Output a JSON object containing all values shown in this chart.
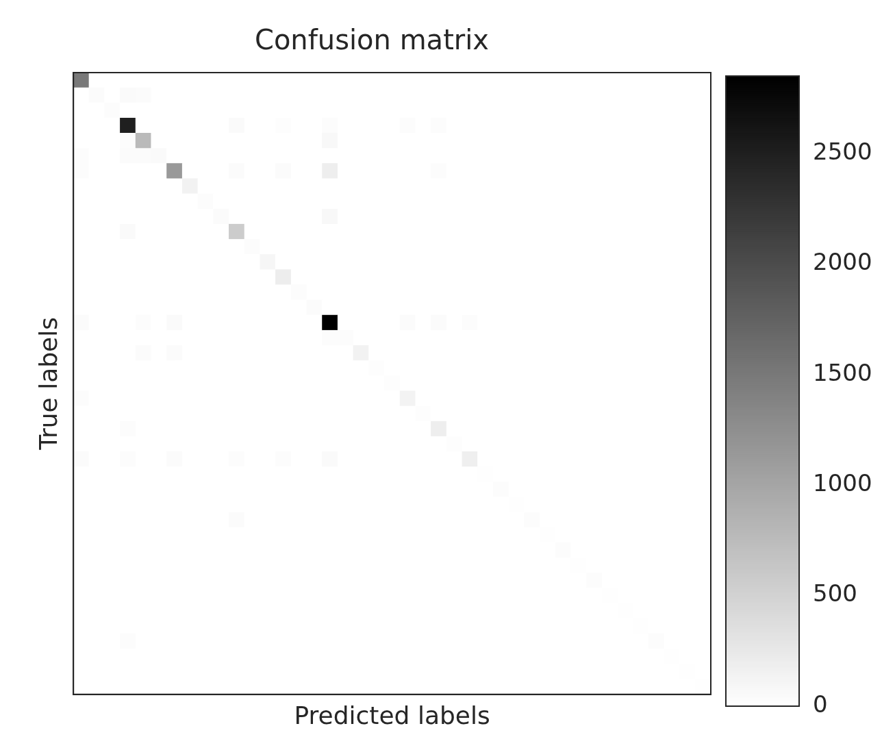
{
  "chart_data": {
    "type": "heatmap",
    "title": "Confusion matrix",
    "xlabel": "Predicted labels",
    "ylabel": "True labels",
    "categories": [
      null,
      null,
      null,
      null,
      null,
      null,
      null,
      null,
      null,
      null,
      null,
      null,
      null,
      null,
      null,
      null,
      null,
      null,
      null,
      null,
      null,
      null,
      null,
      null,
      null,
      null,
      null,
      null,
      null,
      null,
      null,
      null,
      null,
      null,
      null,
      null,
      null,
      null,
      null,
      null,
      null
    ],
    "y_categories": [
      null,
      null,
      null,
      null,
      null,
      null,
      null,
      null,
      null,
      null,
      null,
      null,
      null,
      null,
      null,
      null,
      null,
      null,
      null,
      null,
      null,
      null,
      null,
      null,
      null,
      null,
      null,
      null,
      null,
      null,
      null,
      null,
      null,
      null,
      null,
      null,
      null,
      null,
      null,
      null,
      null
    ],
    "cells": [
      [
        1500,
        0,
        0,
        0,
        0,
        0,
        0,
        0,
        0,
        0,
        0,
        0,
        0,
        0,
        0,
        0,
        0,
        0,
        0,
        0,
        0,
        0,
        0,
        0,
        0,
        0,
        0,
        0,
        0,
        0,
        0,
        0,
        0,
        0,
        0,
        0,
        0,
        0,
        0,
        0,
        0
      ],
      [
        0,
        40,
        0,
        60,
        40,
        0,
        0,
        0,
        0,
        0,
        0,
        0,
        0,
        0,
        0,
        0,
        0,
        0,
        0,
        0,
        0,
        0,
        0,
        0,
        0,
        0,
        0,
        0,
        0,
        0,
        0,
        0,
        0,
        0,
        0,
        0,
        0,
        0,
        0,
        0,
        0
      ],
      [
        0,
        0,
        30,
        0,
        0,
        0,
        0,
        0,
        0,
        0,
        0,
        0,
        0,
        0,
        0,
        0,
        0,
        0,
        0,
        0,
        0,
        0,
        0,
        0,
        0,
        0,
        0,
        0,
        0,
        0,
        0,
        0,
        0,
        0,
        0,
        0,
        0,
        0,
        0,
        0,
        0
      ],
      [
        0,
        0,
        0,
        2500,
        0,
        0,
        0,
        0,
        0,
        0,
        60,
        0,
        0,
        20,
        0,
        0,
        30,
        0,
        0,
        0,
        0,
        30,
        0,
        30,
        0,
        0,
        0,
        0,
        0,
        0,
        0,
        0,
        0,
        0,
        0,
        0,
        0,
        0,
        0,
        0,
        0
      ],
      [
        0,
        0,
        0,
        30,
        770,
        0,
        0,
        0,
        0,
        0,
        0,
        0,
        0,
        0,
        0,
        0,
        80,
        0,
        0,
        0,
        0,
        0,
        0,
        0,
        0,
        0,
        0,
        0,
        0,
        0,
        0,
        0,
        0,
        0,
        0,
        0,
        0,
        0,
        0,
        0,
        0
      ],
      [
        30,
        0,
        0,
        40,
        40,
        60,
        0,
        0,
        0,
        0,
        0,
        0,
        0,
        0,
        0,
        0,
        0,
        0,
        0,
        0,
        0,
        0,
        0,
        0,
        0,
        0,
        0,
        0,
        0,
        0,
        0,
        0,
        0,
        0,
        0,
        0,
        0,
        0,
        0,
        0,
        0
      ],
      [
        30,
        0,
        0,
        0,
        0,
        0,
        1140,
        0,
        0,
        0,
        40,
        0,
        0,
        40,
        0,
        0,
        190,
        0,
        0,
        0,
        0,
        0,
        0,
        30,
        0,
        0,
        0,
        0,
        0,
        0,
        0,
        0,
        0,
        0,
        0,
        0,
        0,
        0,
        0,
        0,
        0
      ],
      [
        0,
        0,
        0,
        0,
        0,
        0,
        0,
        150,
        0,
        0,
        0,
        0,
        0,
        0,
        0,
        0,
        0,
        0,
        0,
        0,
        0,
        0,
        0,
        0,
        0,
        0,
        0,
        0,
        0,
        0,
        0,
        0,
        0,
        0,
        0,
        0,
        0,
        0,
        0,
        0,
        0
      ],
      [
        0,
        0,
        0,
        0,
        0,
        0,
        0,
        0,
        30,
        0,
        0,
        0,
        0,
        0,
        0,
        0,
        0,
        0,
        0,
        0,
        0,
        0,
        0,
        0,
        0,
        0,
        0,
        0,
        0,
        0,
        0,
        0,
        0,
        0,
        0,
        0,
        0,
        0,
        0,
        0,
        0
      ],
      [
        0,
        0,
        0,
        0,
        0,
        0,
        0,
        0,
        0,
        40,
        0,
        0,
        0,
        0,
        0,
        0,
        80,
        0,
        0,
        0,
        0,
        0,
        0,
        0,
        0,
        0,
        0,
        0,
        0,
        0,
        0,
        0,
        0,
        0,
        0,
        0,
        0,
        0,
        0,
        0,
        0
      ],
      [
        0,
        0,
        0,
        60,
        0,
        0,
        0,
        0,
        0,
        0,
        570,
        0,
        0,
        0,
        0,
        0,
        0,
        0,
        0,
        0,
        0,
        0,
        0,
        0,
        0,
        0,
        0,
        0,
        0,
        0,
        0,
        0,
        0,
        0,
        0,
        0,
        0,
        0,
        0,
        0,
        0
      ],
      [
        0,
        0,
        0,
        0,
        0,
        0,
        0,
        0,
        0,
        0,
        0,
        30,
        0,
        0,
        0,
        0,
        0,
        0,
        0,
        0,
        0,
        0,
        0,
        0,
        0,
        0,
        0,
        0,
        0,
        0,
        0,
        0,
        0,
        0,
        0,
        0,
        0,
        0,
        0,
        0,
        0
      ],
      [
        0,
        0,
        0,
        0,
        0,
        0,
        0,
        0,
        0,
        0,
        0,
        0,
        100,
        0,
        0,
        0,
        0,
        0,
        0,
        0,
        0,
        0,
        0,
        0,
        0,
        0,
        0,
        0,
        0,
        0,
        0,
        0,
        0,
        0,
        0,
        0,
        0,
        0,
        0,
        0,
        0
      ],
      [
        0,
        0,
        0,
        0,
        0,
        0,
        0,
        0,
        0,
        0,
        0,
        0,
        0,
        200,
        0,
        0,
        0,
        0,
        0,
        0,
        0,
        0,
        0,
        0,
        0,
        0,
        0,
        0,
        0,
        0,
        0,
        0,
        0,
        0,
        0,
        0,
        0,
        0,
        0,
        0,
        0
      ],
      [
        0,
        0,
        0,
        0,
        0,
        0,
        0,
        0,
        0,
        0,
        0,
        0,
        0,
        0,
        30,
        0,
        0,
        0,
        0,
        0,
        0,
        0,
        0,
        0,
        0,
        0,
        0,
        0,
        0,
        0,
        0,
        0,
        0,
        0,
        0,
        0,
        0,
        0,
        0,
        0,
        0
      ],
      [
        0,
        0,
        0,
        0,
        0,
        0,
        0,
        0,
        0,
        0,
        0,
        0,
        0,
        0,
        0,
        40,
        0,
        0,
        0,
        0,
        0,
        0,
        0,
        0,
        0,
        0,
        0,
        0,
        0,
        0,
        0,
        0,
        0,
        0,
        0,
        0,
        0,
        0,
        0,
        0,
        0
      ],
      [
        40,
        0,
        0,
        0,
        30,
        0,
        60,
        0,
        0,
        0,
        0,
        0,
        0,
        0,
        0,
        0,
        2850,
        0,
        0,
        0,
        0,
        40,
        0,
        40,
        0,
        30,
        0,
        0,
        0,
        0,
        0,
        0,
        0,
        0,
        0,
        0,
        0,
        0,
        0,
        0,
        0
      ],
      [
        0,
        0,
        0,
        0,
        0,
        0,
        0,
        0,
        0,
        0,
        0,
        0,
        0,
        0,
        0,
        0,
        30,
        30,
        0,
        0,
        0,
        0,
        0,
        0,
        0,
        0,
        0,
        0,
        0,
        0,
        0,
        0,
        0,
        0,
        0,
        0,
        0,
        0,
        0,
        0,
        0
      ],
      [
        0,
        0,
        0,
        0,
        40,
        0,
        40,
        0,
        0,
        0,
        0,
        0,
        0,
        0,
        0,
        0,
        0,
        0,
        140,
        0,
        0,
        0,
        0,
        0,
        0,
        0,
        0,
        0,
        0,
        0,
        0,
        0,
        0,
        0,
        0,
        0,
        0,
        0,
        0,
        0,
        0
      ],
      [
        0,
        0,
        0,
        0,
        0,
        0,
        0,
        0,
        0,
        0,
        0,
        0,
        0,
        0,
        0,
        0,
        0,
        0,
        0,
        20,
        0,
        0,
        0,
        0,
        0,
        0,
        0,
        0,
        0,
        0,
        0,
        0,
        0,
        0,
        0,
        0,
        0,
        0,
        0,
        0,
        0
      ],
      [
        0,
        0,
        0,
        0,
        0,
        0,
        0,
        0,
        0,
        0,
        0,
        0,
        0,
        0,
        0,
        0,
        0,
        0,
        0,
        0,
        20,
        0,
        0,
        0,
        0,
        0,
        0,
        0,
        0,
        0,
        0,
        0,
        0,
        0,
        0,
        0,
        0,
        0,
        0,
        0,
        0
      ],
      [
        30,
        0,
        0,
        0,
        0,
        0,
        0,
        0,
        0,
        0,
        0,
        0,
        0,
        0,
        0,
        0,
        0,
        0,
        0,
        0,
        0,
        130,
        0,
        0,
        0,
        0,
        0,
        0,
        0,
        0,
        0,
        0,
        0,
        0,
        0,
        0,
        0,
        0,
        0,
        0,
        0
      ],
      [
        0,
        0,
        0,
        0,
        0,
        0,
        0,
        0,
        0,
        0,
        0,
        0,
        0,
        0,
        0,
        0,
        0,
        0,
        0,
        0,
        0,
        0,
        20,
        0,
        0,
        0,
        0,
        0,
        0,
        0,
        0,
        0,
        0,
        0,
        0,
        0,
        0,
        0,
        0,
        0,
        0
      ],
      [
        0,
        0,
        0,
        30,
        0,
        0,
        0,
        0,
        0,
        0,
        0,
        0,
        0,
        0,
        0,
        0,
        0,
        0,
        0,
        0,
        0,
        0,
        0,
        190,
        0,
        0,
        0,
        0,
        0,
        0,
        0,
        0,
        0,
        0,
        0,
        0,
        0,
        0,
        0,
        0,
        0
      ],
      [
        0,
        0,
        0,
        0,
        0,
        0,
        0,
        0,
        0,
        0,
        0,
        0,
        0,
        0,
        0,
        0,
        0,
        0,
        0,
        0,
        0,
        0,
        0,
        0,
        20,
        0,
        0,
        0,
        0,
        0,
        0,
        0,
        0,
        0,
        0,
        0,
        0,
        0,
        0,
        0,
        0
      ],
      [
        40,
        0,
        0,
        30,
        0,
        0,
        40,
        0,
        0,
        0,
        30,
        0,
        0,
        30,
        0,
        0,
        60,
        0,
        0,
        0,
        0,
        0,
        0,
        0,
        0,
        180,
        0,
        0,
        0,
        0,
        0,
        0,
        0,
        0,
        0,
        0,
        0,
        0,
        0,
        0,
        0
      ],
      [
        0,
        0,
        0,
        0,
        0,
        0,
        0,
        0,
        0,
        0,
        0,
        0,
        0,
        0,
        0,
        0,
        0,
        0,
        0,
        0,
        0,
        0,
        0,
        0,
        0,
        0,
        10,
        0,
        0,
        0,
        0,
        0,
        0,
        0,
        0,
        0,
        0,
        0,
        0,
        0,
        0
      ],
      [
        0,
        0,
        0,
        0,
        0,
        0,
        0,
        0,
        0,
        0,
        0,
        0,
        0,
        0,
        0,
        0,
        0,
        0,
        0,
        0,
        0,
        0,
        0,
        0,
        0,
        0,
        0,
        30,
        0,
        0,
        0,
        0,
        0,
        0,
        0,
        0,
        0,
        0,
        0,
        0,
        0
      ],
      [
        0,
        0,
        0,
        0,
        0,
        0,
        0,
        0,
        0,
        0,
        0,
        0,
        0,
        0,
        0,
        0,
        0,
        0,
        0,
        0,
        0,
        0,
        0,
        0,
        0,
        0,
        0,
        0,
        10,
        0,
        0,
        0,
        0,
        0,
        0,
        0,
        0,
        0,
        0,
        0,
        0
      ],
      [
        0,
        0,
        0,
        0,
        0,
        0,
        0,
        0,
        0,
        0,
        50,
        0,
        0,
        0,
        0,
        0,
        0,
        0,
        0,
        0,
        0,
        0,
        0,
        0,
        0,
        0,
        0,
        0,
        0,
        30,
        0,
        0,
        0,
        0,
        0,
        0,
        0,
        0,
        0,
        0,
        0
      ],
      [
        0,
        0,
        0,
        0,
        0,
        0,
        0,
        0,
        0,
        0,
        0,
        0,
        0,
        0,
        0,
        0,
        0,
        0,
        0,
        0,
        0,
        0,
        0,
        0,
        0,
        0,
        0,
        0,
        0,
        0,
        10,
        0,
        0,
        0,
        0,
        0,
        0,
        0,
        0,
        0,
        0
      ],
      [
        0,
        0,
        0,
        0,
        0,
        0,
        0,
        0,
        0,
        0,
        0,
        0,
        0,
        0,
        0,
        0,
        0,
        0,
        0,
        0,
        0,
        0,
        0,
        0,
        0,
        0,
        0,
        0,
        0,
        0,
        0,
        30,
        0,
        0,
        0,
        0,
        0,
        0,
        0,
        0,
        0
      ],
      [
        0,
        0,
        0,
        0,
        0,
        0,
        0,
        0,
        0,
        0,
        0,
        0,
        0,
        0,
        0,
        0,
        0,
        0,
        0,
        0,
        0,
        0,
        0,
        0,
        0,
        0,
        0,
        0,
        0,
        0,
        0,
        0,
        10,
        0,
        0,
        0,
        0,
        0,
        0,
        0,
        0
      ],
      [
        0,
        0,
        0,
        0,
        0,
        0,
        0,
        0,
        0,
        0,
        0,
        0,
        0,
        0,
        0,
        0,
        0,
        0,
        0,
        0,
        0,
        0,
        0,
        0,
        0,
        0,
        0,
        0,
        0,
        0,
        0,
        0,
        0,
        30,
        0,
        0,
        0,
        0,
        0,
        0,
        0
      ],
      [
        0,
        0,
        0,
        0,
        0,
        0,
        0,
        0,
        0,
        0,
        0,
        0,
        0,
        0,
        0,
        0,
        0,
        0,
        0,
        0,
        0,
        0,
        0,
        0,
        0,
        0,
        0,
        0,
        0,
        0,
        0,
        0,
        0,
        0,
        10,
        0,
        0,
        0,
        0,
        0,
        0
      ],
      [
        0,
        0,
        0,
        0,
        0,
        0,
        0,
        0,
        0,
        0,
        0,
        0,
        0,
        0,
        0,
        0,
        0,
        0,
        0,
        0,
        0,
        0,
        0,
        0,
        0,
        0,
        0,
        0,
        0,
        0,
        0,
        0,
        0,
        0,
        0,
        10,
        0,
        0,
        0,
        0,
        0
      ],
      [
        0,
        0,
        0,
        0,
        0,
        0,
        0,
        0,
        0,
        0,
        0,
        0,
        0,
        0,
        0,
        0,
        0,
        0,
        0,
        0,
        0,
        0,
        0,
        0,
        0,
        0,
        0,
        0,
        0,
        0,
        0,
        0,
        0,
        0,
        0,
        0,
        10,
        0,
        0,
        0,
        0
      ],
      [
        0,
        0,
        0,
        30,
        0,
        0,
        0,
        0,
        0,
        0,
        0,
        0,
        0,
        0,
        0,
        0,
        0,
        0,
        0,
        0,
        0,
        0,
        0,
        0,
        0,
        0,
        0,
        0,
        0,
        0,
        0,
        0,
        0,
        0,
        0,
        0,
        0,
        30,
        0,
        0,
        0
      ],
      [
        0,
        0,
        0,
        0,
        0,
        0,
        0,
        0,
        0,
        0,
        0,
        0,
        0,
        0,
        0,
        0,
        0,
        0,
        0,
        0,
        0,
        0,
        0,
        0,
        0,
        0,
        0,
        0,
        0,
        0,
        0,
        0,
        0,
        0,
        0,
        0,
        0,
        0,
        10,
        0,
        0
      ],
      [
        0,
        0,
        0,
        0,
        0,
        0,
        0,
        0,
        0,
        0,
        0,
        0,
        0,
        0,
        0,
        0,
        0,
        0,
        0,
        0,
        0,
        0,
        0,
        0,
        0,
        0,
        0,
        0,
        0,
        0,
        0,
        0,
        0,
        0,
        0,
        0,
        0,
        0,
        0,
        10,
        0
      ],
      [
        0,
        0,
        0,
        0,
        0,
        0,
        0,
        0,
        0,
        0,
        0,
        0,
        0,
        0,
        0,
        0,
        0,
        0,
        0,
        0,
        0,
        0,
        0,
        0,
        0,
        0,
        0,
        0,
        0,
        0,
        0,
        0,
        0,
        0,
        0,
        0,
        0,
        0,
        0,
        0,
        10
      ]
    ],
    "clim": [
      0,
      2850
    ],
    "cticks": [
      0,
      500,
      1000,
      1500,
      2000,
      2500
    ],
    "tick_labels": false
  }
}
